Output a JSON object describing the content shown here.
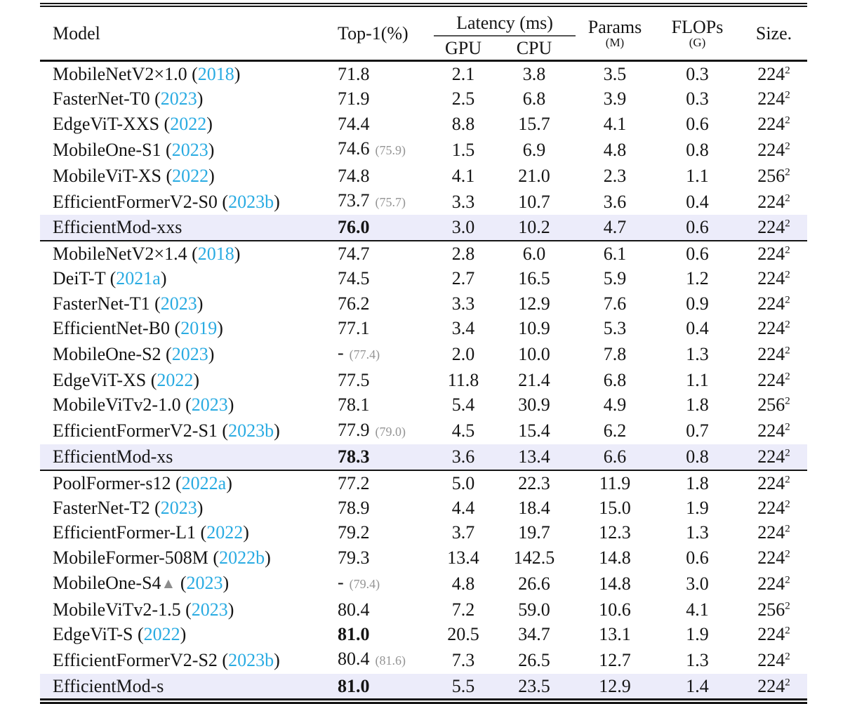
{
  "colors": {
    "citation": "#29abe2",
    "highlight_row": "#ececfa",
    "muted_paren": "#949494",
    "rule": "#151515"
  },
  "header": {
    "model": "Model",
    "top1": "Top-1(%)",
    "latency_group": "Latency (ms)",
    "gpu": "GPU",
    "cpu": "CPU",
    "params": "Params",
    "params_unit": "(M)",
    "flops": "FLOPs",
    "flops_unit": "(G)",
    "size": "Size."
  },
  "sections": [
    {
      "rows": [
        {
          "model": "MobileNetV2×1.0",
          "marker": "",
          "year": "2018",
          "top1": "71.8",
          "top1_alt": "",
          "top1_bold": false,
          "gpu": "2.1",
          "cpu": "3.8",
          "params": "3.5",
          "flops": "0.3",
          "size": "224",
          "size_sup": "2",
          "highlight": false
        },
        {
          "model": "FasterNet-T0",
          "marker": "",
          "year": "2023",
          "top1": "71.9",
          "top1_alt": "",
          "top1_bold": false,
          "gpu": "2.5",
          "cpu": "6.8",
          "params": "3.9",
          "flops": "0.3",
          "size": "224",
          "size_sup": "2",
          "highlight": false
        },
        {
          "model": "EdgeViT-XXS",
          "marker": "",
          "year": "2022",
          "top1": "74.4",
          "top1_alt": "",
          "top1_bold": false,
          "gpu": "8.8",
          "cpu": "15.7",
          "params": "4.1",
          "flops": "0.6",
          "size": "224",
          "size_sup": "2",
          "highlight": false
        },
        {
          "model": "MobileOne-S1",
          "marker": "",
          "year": "2023",
          "top1": "74.6",
          "top1_alt": "75.9",
          "top1_bold": false,
          "gpu": "1.5",
          "cpu": "6.9",
          "params": "4.8",
          "flops": "0.8",
          "size": "224",
          "size_sup": "2",
          "highlight": false
        },
        {
          "model": "MobileViT-XS",
          "marker": "",
          "year": "2022",
          "top1": "74.8",
          "top1_alt": "",
          "top1_bold": false,
          "gpu": "4.1",
          "cpu": "21.0",
          "params": "2.3",
          "flops": "1.1",
          "size": "256",
          "size_sup": "2",
          "highlight": false
        },
        {
          "model": "EfficientFormerV2-S0",
          "marker": "",
          "year": "2023b",
          "top1": "73.7",
          "top1_alt": "75.7",
          "top1_bold": false,
          "gpu": "3.3",
          "cpu": "10.7",
          "params": "3.6",
          "flops": "0.4",
          "size": "224",
          "size_sup": "2",
          "highlight": false
        },
        {
          "model": "EfficientMod-xxs",
          "marker": "",
          "year": "",
          "top1": "76.0",
          "top1_alt": "",
          "top1_bold": true,
          "gpu": "3.0",
          "cpu": "10.2",
          "params": "4.7",
          "flops": "0.6",
          "size": "224",
          "size_sup": "2",
          "highlight": true
        }
      ]
    },
    {
      "rows": [
        {
          "model": "MobileNetV2×1.4",
          "marker": "",
          "year": "2018",
          "top1": "74.7",
          "top1_alt": "",
          "top1_bold": false,
          "gpu": "2.8",
          "cpu": "6.0",
          "params": "6.1",
          "flops": "0.6",
          "size": "224",
          "size_sup": "2",
          "highlight": false
        },
        {
          "model": "DeiT-T",
          "marker": "",
          "year": "2021a",
          "top1": "74.5",
          "top1_alt": "",
          "top1_bold": false,
          "gpu": "2.7",
          "cpu": "16.5",
          "params": "5.9",
          "flops": "1.2",
          "size": "224",
          "size_sup": "2",
          "highlight": false
        },
        {
          "model": "FasterNet-T1",
          "marker": "",
          "year": "2023",
          "top1": "76.2",
          "top1_alt": "",
          "top1_bold": false,
          "gpu": "3.3",
          "cpu": "12.9",
          "params": "7.6",
          "flops": "0.9",
          "size": "224",
          "size_sup": "2",
          "highlight": false
        },
        {
          "model": "EfficientNet-B0",
          "marker": "",
          "year": "2019",
          "top1": "77.1",
          "top1_alt": "",
          "top1_bold": false,
          "gpu": "3.4",
          "cpu": "10.9",
          "params": "5.3",
          "flops": "0.4",
          "size": "224",
          "size_sup": "2",
          "highlight": false
        },
        {
          "model": "MobileOne-S2",
          "marker": "",
          "year": "2023",
          "top1": "-",
          "top1_alt": "77.4",
          "top1_bold": false,
          "gpu": "2.0",
          "cpu": "10.0",
          "params": "7.8",
          "flops": "1.3",
          "size": "224",
          "size_sup": "2",
          "highlight": false
        },
        {
          "model": "EdgeViT-XS",
          "marker": "",
          "year": "2022",
          "top1": "77.5",
          "top1_alt": "",
          "top1_bold": false,
          "gpu": "11.8",
          "cpu": "21.4",
          "params": "6.8",
          "flops": "1.1",
          "size": "224",
          "size_sup": "2",
          "highlight": false
        },
        {
          "model": "MobileViTv2-1.0",
          "marker": "",
          "year": "2023",
          "top1": "78.1",
          "top1_alt": "",
          "top1_bold": false,
          "gpu": "5.4",
          "cpu": "30.9",
          "params": "4.9",
          "flops": "1.8",
          "size": "256",
          "size_sup": "2",
          "highlight": false
        },
        {
          "model": "EfficientFormerV2-S1",
          "marker": "",
          "year": "2023b",
          "top1": "77.9",
          "top1_alt": "79.0",
          "top1_bold": false,
          "gpu": "4.5",
          "cpu": "15.4",
          "params": "6.2",
          "flops": "0.7",
          "size": "224",
          "size_sup": "2",
          "highlight": false
        },
        {
          "model": "EfficientMod-xs",
          "marker": "",
          "year": "",
          "top1": "78.3",
          "top1_alt": "",
          "top1_bold": true,
          "gpu": "3.6",
          "cpu": "13.4",
          "params": "6.6",
          "flops": "0.8",
          "size": "224",
          "size_sup": "2",
          "highlight": true
        }
      ]
    },
    {
      "rows": [
        {
          "model": "PoolFormer-s12",
          "marker": "",
          "year": "2022a",
          "top1": "77.2",
          "top1_alt": "",
          "top1_bold": false,
          "gpu": "5.0",
          "cpu": "22.3",
          "params": "11.9",
          "flops": "1.8",
          "size": "224",
          "size_sup": "2",
          "highlight": false
        },
        {
          "model": "FasterNet-T2",
          "marker": "",
          "year": "2023",
          "top1": "78.9",
          "top1_alt": "",
          "top1_bold": false,
          "gpu": "4.4",
          "cpu": "18.4",
          "params": "15.0",
          "flops": "1.9",
          "size": "224",
          "size_sup": "2",
          "highlight": false
        },
        {
          "model": "EfficientFormer-L1",
          "marker": "",
          "year": "2022",
          "top1": "79.2",
          "top1_alt": "",
          "top1_bold": false,
          "gpu": "3.7",
          "cpu": "19.7",
          "params": "12.3",
          "flops": "1.3",
          "size": "224",
          "size_sup": "2",
          "highlight": false
        },
        {
          "model": "MobileFormer-508M",
          "marker": "",
          "year": "2022b",
          "top1": "79.3",
          "top1_alt": "",
          "top1_bold": false,
          "gpu": "13.4",
          "cpu": "142.5",
          "params": "14.8",
          "flops": "0.6",
          "size": "224",
          "size_sup": "2",
          "highlight": false
        },
        {
          "model": "MobileOne-S4",
          "marker": "▲",
          "year": "2023",
          "top1": "-",
          "top1_alt": "79.4",
          "top1_bold": false,
          "gpu": "4.8",
          "cpu": "26.6",
          "params": "14.8",
          "flops": "3.0",
          "size": "224",
          "size_sup": "2",
          "highlight": false
        },
        {
          "model": "MobileViTv2-1.5",
          "marker": "",
          "year": "2023",
          "top1": "80.4",
          "top1_alt": "",
          "top1_bold": false,
          "gpu": "7.2",
          "cpu": "59.0",
          "params": "10.6",
          "flops": "4.1",
          "size": "256",
          "size_sup": "2",
          "highlight": false
        },
        {
          "model": "EdgeViT-S",
          "marker": "",
          "year": "2022",
          "top1": "81.0",
          "top1_alt": "",
          "top1_bold": true,
          "gpu": "20.5",
          "cpu": "34.7",
          "params": "13.1",
          "flops": "1.9",
          "size": "224",
          "size_sup": "2",
          "highlight": false
        },
        {
          "model": "EfficientFormerV2-S2",
          "marker": "",
          "year": "2023b",
          "top1": "80.4",
          "top1_alt": "81.6",
          "top1_bold": false,
          "gpu": "7.3",
          "cpu": "26.5",
          "params": "12.7",
          "flops": "1.3",
          "size": "224",
          "size_sup": "2",
          "highlight": false
        },
        {
          "model": "EfficientMod-s",
          "marker": "",
          "year": "",
          "top1": "81.0",
          "top1_alt": "",
          "top1_bold": true,
          "gpu": "5.5",
          "cpu": "23.5",
          "params": "12.9",
          "flops": "1.4",
          "size": "224",
          "size_sup": "2",
          "highlight": true
        }
      ]
    }
  ]
}
